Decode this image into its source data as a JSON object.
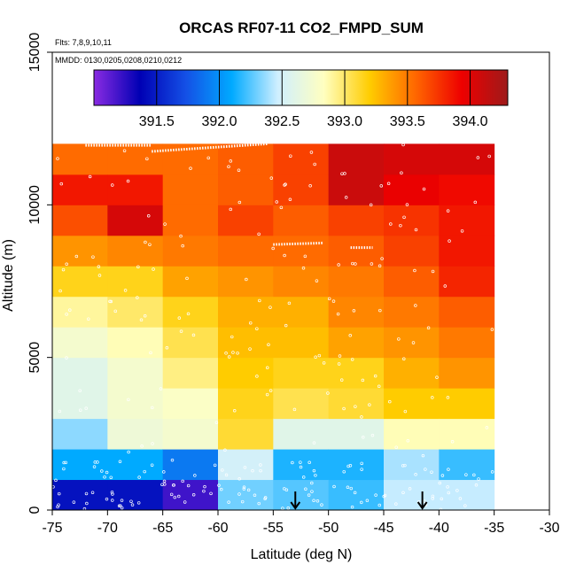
{
  "chart_data": {
    "type": "heatmap",
    "title": "ORCAS RF07-11 CO2_FMPD_SUM",
    "flights_note": "Flts: 7,8,9,10,11",
    "dates_note": "MMDD: 0130,0205,0208,0210,0212",
    "xlabel": "Latitude (deg N)",
    "ylabel": "Altitude (m)",
    "xlim": [
      -75,
      -30
    ],
    "ylim": [
      0,
      15000
    ],
    "x_ticks": [
      -75,
      -70,
      -65,
      -60,
      -55,
      -50,
      -45,
      -40,
      -35,
      -30
    ],
    "y_ticks": [
      0,
      5000,
      10000,
      15000
    ],
    "lat_edges": [
      -75,
      -70,
      -65,
      -60,
      -55,
      -50,
      -45,
      -40,
      -35
    ],
    "alt_bin_size": 1000,
    "colorbar": {
      "min": 391.0,
      "max": 394.3,
      "ticks": [
        391.5,
        392.0,
        392.5,
        393.0,
        393.5,
        394.0
      ],
      "colors": [
        "#8a2be2",
        "#0000b4",
        "#1450e6",
        "#00aaff",
        "#cfefff",
        "#ffffc0",
        "#ffcc00",
        "#ff6600",
        "#ee0000",
        "#9e1a1a"
      ]
    },
    "columns": [
      {
        "lat_range": [
          -75,
          -70
        ],
        "values": [
          391.45,
          392.1,
          392.35,
          392.6,
          392.6,
          392.75,
          392.9,
          393.15,
          393.4,
          393.65,
          393.85,
          393.55
        ]
      },
      {
        "lat_range": [
          -70,
          -65
        ],
        "values": [
          391.45,
          392.1,
          392.7,
          392.75,
          392.75,
          392.85,
          393.0,
          393.15,
          393.45,
          394.05,
          393.85,
          393.55
        ]
      },
      {
        "lat_range": [
          -65,
          -60
        ],
        "values": [
          391.2,
          391.9,
          392.75,
          392.8,
          392.95,
          393.05,
          393.15,
          393.35,
          393.5,
          393.55,
          393.55,
          393.55
        ]
      },
      {
        "lat_range": [
          -60,
          -55
        ],
        "values": [
          392.3,
          392.5,
          393.1,
          393.15,
          393.2,
          393.25,
          393.3,
          393.4,
          393.55,
          393.7,
          393.6,
          393.6
        ]
      },
      {
        "lat_range": [
          -55,
          -50
        ],
        "values": [
          392.25,
          392.15,
          392.6,
          393.05,
          393.15,
          393.25,
          393.3,
          393.45,
          393.55,
          393.6,
          393.7,
          393.7
        ]
      },
      {
        "lat_range": [
          -50,
          -45
        ],
        "values": [
          392.2,
          392.15,
          392.6,
          393.1,
          393.15,
          393.35,
          393.45,
          393.5,
          393.6,
          393.7,
          394.1,
          394.1
        ]
      },
      {
        "lat_range": [
          -45,
          -40
        ],
        "values": [
          392.45,
          392.4,
          392.85,
          393.2,
          393.3,
          393.4,
          393.5,
          393.6,
          393.7,
          393.75,
          393.95,
          394.05
        ]
      },
      {
        "lat_range": [
          -40,
          -35
        ],
        "values": [
          392.45,
          392.2,
          392.85,
          393.2,
          393.4,
          393.5,
          393.6,
          393.8,
          393.85,
          393.85,
          393.9,
          394.05
        ]
      }
    ],
    "arrow_latitudes": [
      -53,
      -41.5
    ],
    "arrow_note": "arrows mark latitude positions at the surface"
  }
}
